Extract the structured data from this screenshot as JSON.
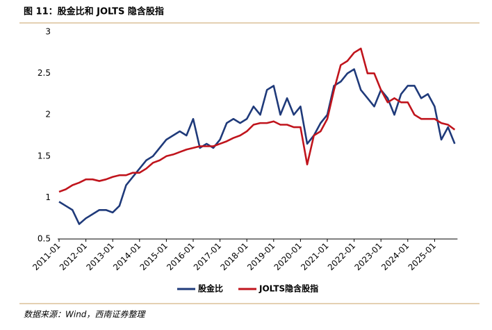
{
  "title": "图 11：股金比和 JOLTS 隐含股指",
  "source": "数据来源：Wind，西南证券整理",
  "chart_data": {
    "type": "line",
    "categories": [
      "2011-01",
      null,
      null,
      null,
      "2012-01",
      null,
      null,
      null,
      "2013-01",
      null,
      null,
      null,
      "2014-01",
      null,
      null,
      null,
      "2015-01",
      null,
      null,
      null,
      "2016-01",
      null,
      null,
      null,
      "2017-01",
      null,
      null,
      null,
      "2018-01",
      null,
      null,
      null,
      "2019-01",
      null,
      null,
      null,
      "2020-01",
      null,
      null,
      null,
      "2021-01",
      null,
      null,
      null,
      "2022-01",
      null,
      null,
      null,
      "2023-01",
      null,
      null,
      null,
      "2024-01",
      null,
      null,
      null,
      "2025-01",
      null,
      null,
      null
    ],
    "series": [
      {
        "name": "股金比",
        "color": "#1f3a7a",
        "values": [
          0.95,
          0.9,
          0.85,
          0.68,
          0.75,
          0.8,
          0.85,
          0.85,
          0.82,
          0.9,
          1.15,
          1.25,
          1.35,
          1.45,
          1.5,
          1.6,
          1.7,
          1.75,
          1.8,
          1.75,
          1.95,
          1.6,
          1.65,
          1.6,
          1.7,
          1.9,
          1.95,
          1.9,
          1.95,
          2.1,
          2.0,
          2.3,
          2.35,
          2.0,
          2.2,
          2.0,
          2.1,
          1.65,
          1.75,
          1.9,
          2.0,
          2.35,
          2.4,
          2.5,
          2.55,
          2.3,
          2.2,
          2.1,
          2.3,
          2.2,
          2.0,
          2.25,
          2.35,
          2.35,
          2.2,
          2.25,
          2.1,
          1.7,
          1.85,
          1.65
        ]
      },
      {
        "name": "JOLTS隐含股指",
        "color": "#c0141c",
        "values": [
          1.07,
          1.1,
          1.15,
          1.18,
          1.22,
          1.22,
          1.2,
          1.22,
          1.25,
          1.27,
          1.27,
          1.3,
          1.3,
          1.35,
          1.42,
          1.45,
          1.5,
          1.52,
          1.55,
          1.58,
          1.6,
          1.62,
          1.62,
          1.62,
          1.65,
          1.68,
          1.72,
          1.75,
          1.8,
          1.88,
          1.9,
          1.9,
          1.92,
          1.88,
          1.88,
          1.85,
          1.85,
          1.4,
          1.75,
          1.8,
          1.95,
          2.3,
          2.6,
          2.65,
          2.75,
          2.8,
          2.5,
          2.5,
          2.3,
          2.15,
          2.2,
          2.15,
          2.15,
          2.0,
          1.95,
          1.95,
          1.95,
          1.9,
          1.88,
          1.82
        ]
      }
    ],
    "ylim": [
      0.5,
      3
    ],
    "yticks": [
      0.5,
      1,
      1.5,
      2,
      2.5,
      3
    ],
    "legend": "bottom"
  }
}
